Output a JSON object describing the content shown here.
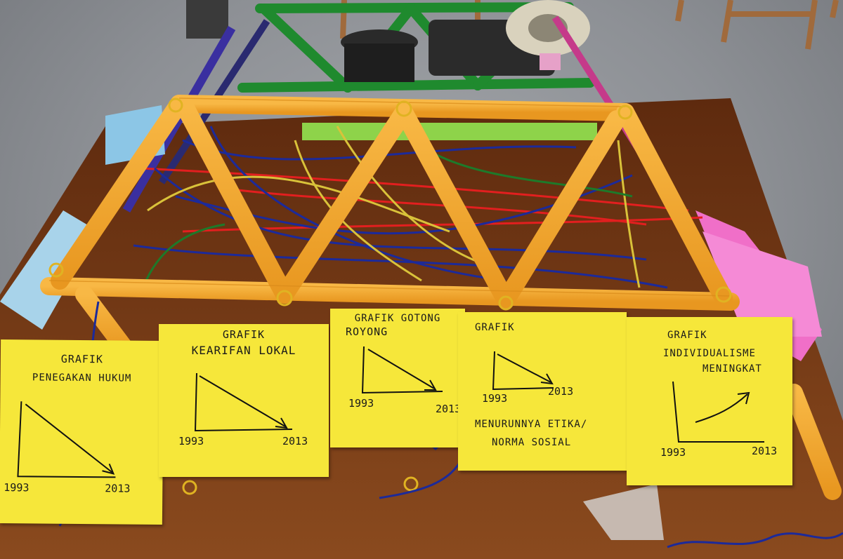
{
  "scene": {
    "subject": "popsicle-stick truss bridge with string and sticky notes",
    "colors": {
      "stick": "#f2a630",
      "note": "#f6e73a",
      "table": "#7a3a14",
      "floor": "#8d9095",
      "green_frame": "#1f8a2e",
      "string_red": "#e21f1f",
      "string_blue": "#1c2a9a",
      "string_yellow": "#d9c23a"
    }
  },
  "notes": [
    {
      "title": "GRAFIK",
      "subtitle": "PENEGAKAN HUKUM",
      "year_start": "1993",
      "year_end": "2013",
      "trend": "down"
    },
    {
      "title": "GRAFIK",
      "subtitle": "KEARIFAN LOKAL",
      "year_start": "1993",
      "year_end": "2013",
      "trend": "down"
    },
    {
      "title": "GRAFIK GOTONG",
      "subtitle": "ROYONG",
      "year_start": "1993",
      "year_end": "2013",
      "trend": "down"
    },
    {
      "title": "GRAFIK",
      "subtitle": "",
      "year_start": "1993",
      "year_end": "2013",
      "caption_line1": "MENURUNNYA ETIKA/",
      "caption_line2": "NORMA SOSIAL",
      "trend": "down"
    },
    {
      "title": "GRAFIK",
      "subtitle_line1": "INDIVIDUALISME",
      "subtitle_line2": "MENINGKAT",
      "year_start": "1993",
      "year_end": "2013",
      "trend": "up"
    }
  ]
}
